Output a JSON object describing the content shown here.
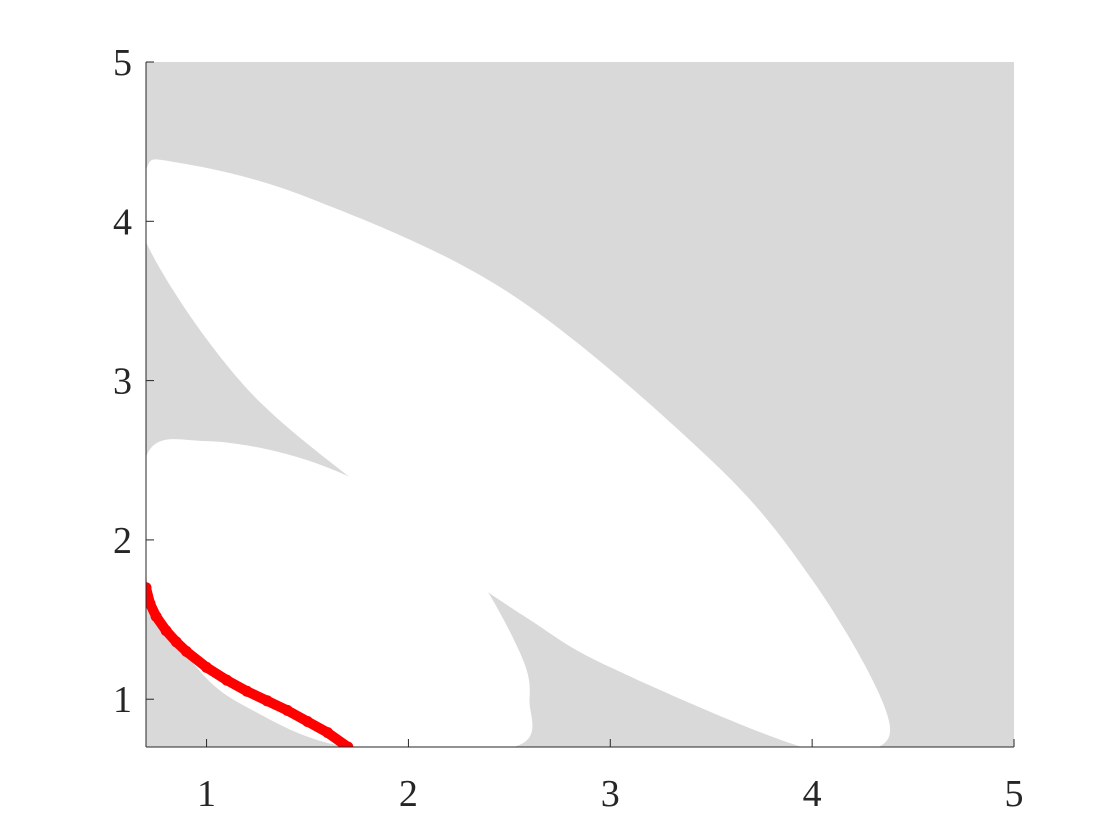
{
  "chart_data": {
    "type": "scatter",
    "title": "",
    "xlabel": "",
    "ylabel": "",
    "xlim": [
      0.7,
      5
    ],
    "ylim": [
      0.7,
      5
    ],
    "xticks": [
      1,
      2,
      3,
      4,
      5
    ],
    "yticks": [
      1,
      2,
      3,
      4,
      5
    ],
    "xtick_labels": [
      "1",
      "2",
      "3",
      "4",
      "5"
    ],
    "ytick_labels": [
      "1",
      "2",
      "3",
      "4",
      "5"
    ],
    "grid": false,
    "background_region_color": "#d9d9d9",
    "excluded_region_color": "#ffffff",
    "excluded_regions": [
      {
        "shape": "ellipse",
        "boundary": [
          [
            0.7,
            4.32
          ],
          [
            0.85,
            4.37
          ],
          [
            1.5,
            4.15
          ],
          [
            2.5,
            3.55
          ],
          [
            3.5,
            2.5
          ],
          [
            4.0,
            1.75
          ],
          [
            4.35,
            0.98
          ],
          [
            4.33,
            0.7
          ],
          [
            3.95,
            0.7
          ],
          [
            3.0,
            1.2
          ],
          [
            2.6,
            1.5
          ],
          [
            2.2,
            1.85
          ],
          [
            1.9,
            2.2
          ],
          [
            1.2,
            2.95
          ],
          [
            0.7,
            3.87
          ]
        ]
      },
      {
        "shape": "ellipse",
        "boundary": [
          [
            0.7,
            2.52
          ],
          [
            1.0,
            2.62
          ],
          [
            1.5,
            2.5
          ],
          [
            2.0,
            2.2
          ],
          [
            2.3,
            1.85
          ],
          [
            2.55,
            1.3
          ],
          [
            2.6,
            1.0
          ],
          [
            2.52,
            0.7
          ],
          [
            1.7,
            0.7
          ],
          [
            1.2,
            0.95
          ],
          [
            0.95,
            1.2
          ],
          [
            0.72,
            1.65
          ]
        ]
      }
    ],
    "series": [
      {
        "color": "#ff0000",
        "marker": "filled-circle",
        "x": [
          0.7,
          0.72,
          0.75,
          0.8,
          0.85,
          0.9,
          1.0,
          1.1,
          1.2,
          1.3,
          1.4,
          1.5,
          1.6,
          1.7
        ],
        "y": [
          1.7,
          1.6,
          1.52,
          1.43,
          1.36,
          1.3,
          1.2,
          1.12,
          1.05,
          0.99,
          0.93,
          0.86,
          0.79,
          0.7
        ]
      }
    ]
  }
}
